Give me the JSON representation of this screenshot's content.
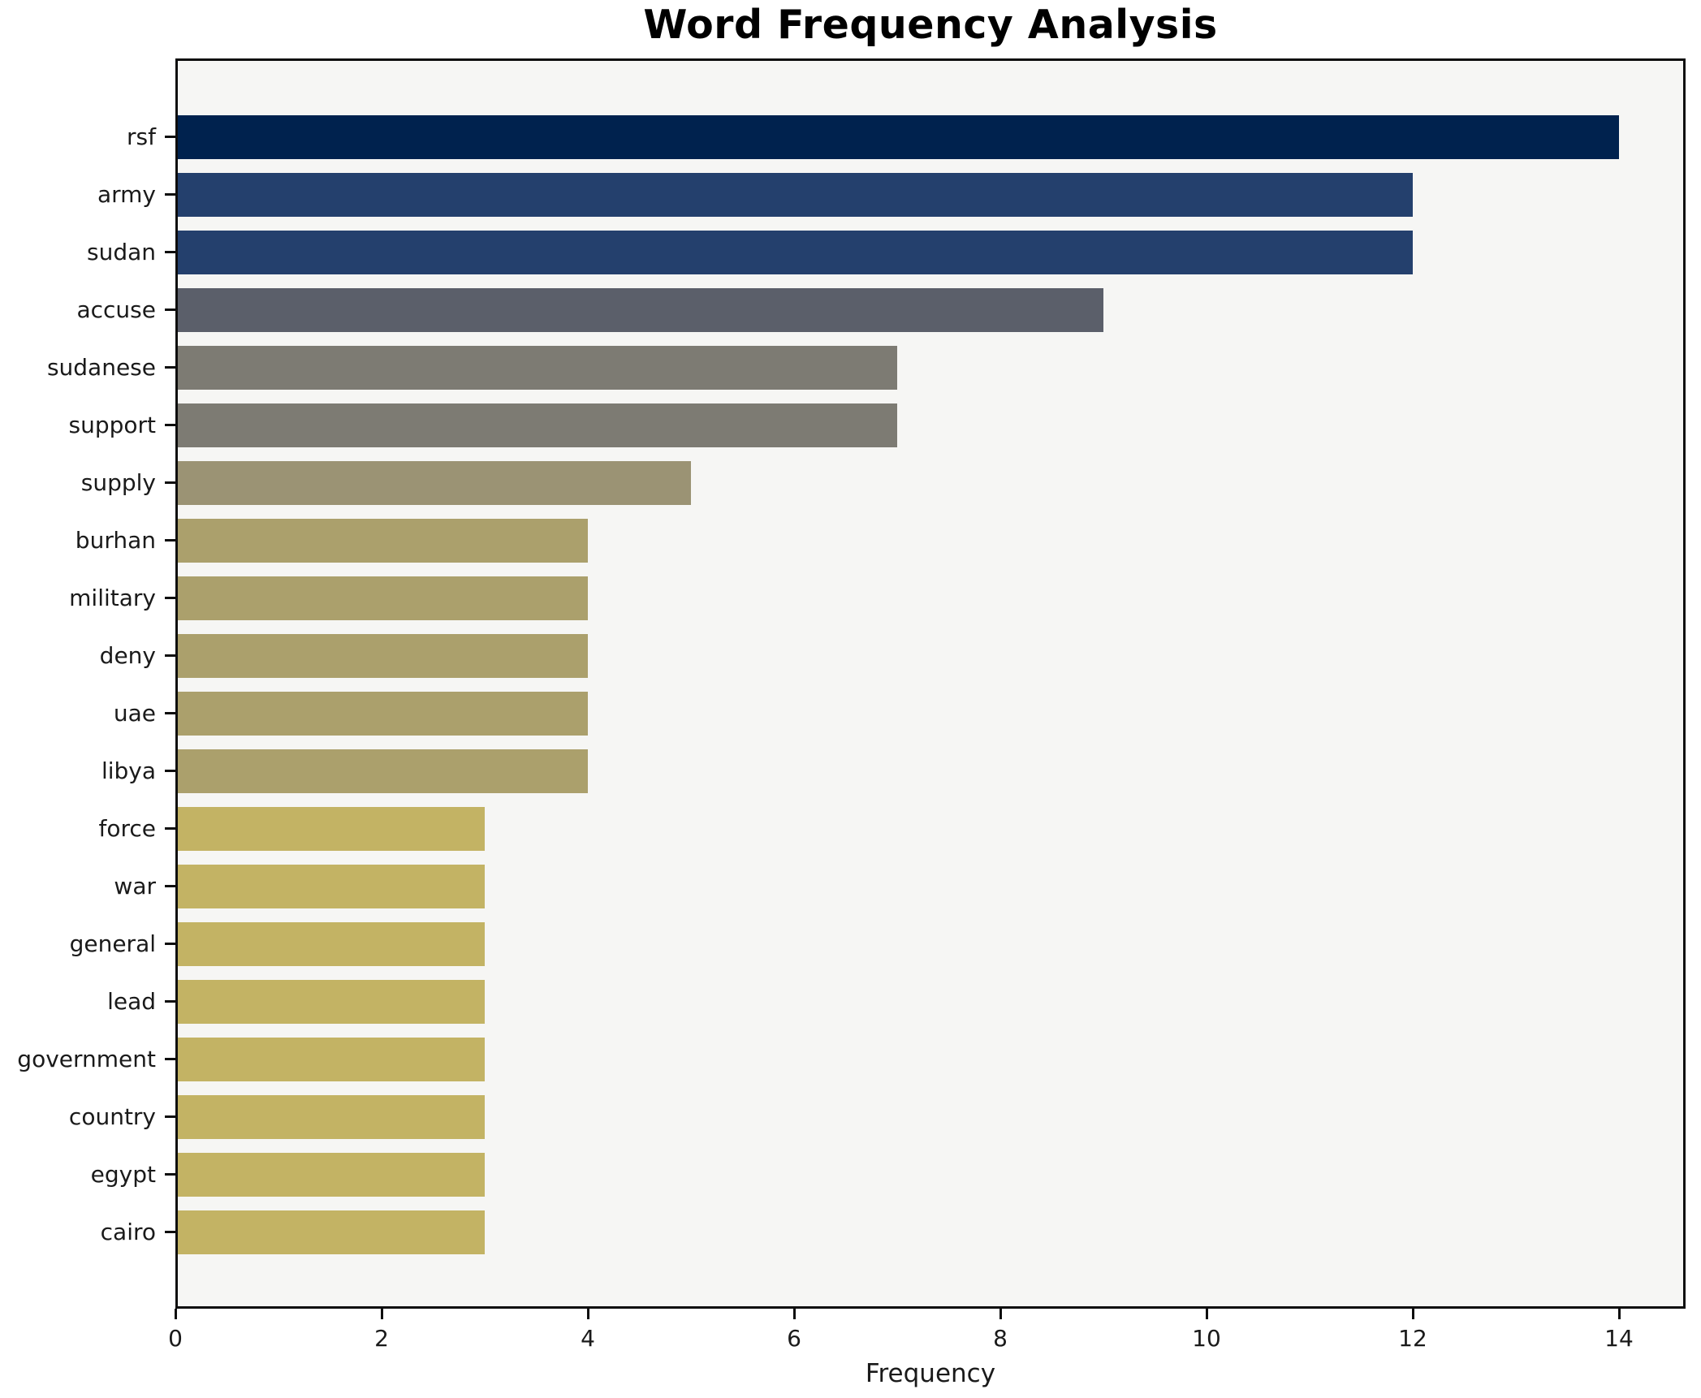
{
  "chart_data": {
    "type": "bar",
    "orientation": "horizontal",
    "title": "Word Frequency Analysis",
    "xlabel": "Frequency",
    "ylabel": "",
    "categories": [
      "rsf",
      "army",
      "sudan",
      "accuse",
      "sudanese",
      "support",
      "supply",
      "burhan",
      "military",
      "deny",
      "uae",
      "libya",
      "force",
      "war",
      "general",
      "lead",
      "government",
      "country",
      "egypt",
      "cairo"
    ],
    "values": [
      14,
      12,
      12,
      9,
      7,
      7,
      5,
      4,
      4,
      4,
      4,
      4,
      3,
      3,
      3,
      3,
      3,
      3,
      3,
      3
    ],
    "bar_colors": [
      "#00224e",
      "#24406d",
      "#24406d",
      "#5b5f6a",
      "#7d7b73",
      "#7d7b73",
      "#9b9374",
      "#aba06c",
      "#aba06c",
      "#aba06c",
      "#aba06c",
      "#aba06c",
      "#c3b364",
      "#c3b364",
      "#c3b364",
      "#c3b364",
      "#c3b364",
      "#c3b364",
      "#c3b364",
      "#c3b364"
    ],
    "xlim": [
      0,
      14.65
    ],
    "x_ticks": [
      0,
      2,
      4,
      6,
      8,
      10,
      12,
      14
    ],
    "grid": false,
    "legend": null,
    "plot_background": "#f6f6f4",
    "spine_color": "#0e0e0e",
    "text_color": "#1a1a1a"
  }
}
